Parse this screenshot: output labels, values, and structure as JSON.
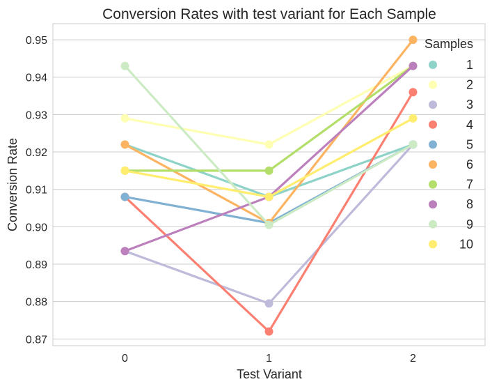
{
  "chart_data": {
    "type": "line",
    "title": "Conversion Rates with test variant for Each Sample",
    "xlabel": "Test Variant",
    "ylabel": "Conversion Rate",
    "x": [
      0,
      1,
      2
    ],
    "x_tick_labels": [
      "0",
      "1",
      "2"
    ],
    "xlim": [
      -0.5,
      2.5
    ],
    "ylim": [
      0.8682,
      0.9543
    ],
    "y_ticks": [
      0.87,
      0.88,
      0.89,
      0.9,
      0.91,
      0.92,
      0.93,
      0.94,
      0.95
    ],
    "y_tick_labels": [
      "0.87",
      "0.88",
      "0.89",
      "0.90",
      "0.91",
      "0.92",
      "0.93",
      "0.94",
      "0.95"
    ],
    "grid": "horizontal",
    "legend": {
      "title": "Samples",
      "placement": "top-right"
    },
    "series": [
      {
        "name": "1",
        "color": "#8dd3c7",
        "values": [
          0.922,
          0.908,
          0.922
        ]
      },
      {
        "name": "2",
        "color": "#ffffb3",
        "values": [
          0.929,
          0.922,
          0.943
        ]
      },
      {
        "name": "3",
        "color": "#bebada",
        "values": [
          0.8935,
          0.8795,
          0.922
        ]
      },
      {
        "name": "4",
        "color": "#fb8072",
        "values": [
          0.908,
          0.872,
          0.936
        ]
      },
      {
        "name": "5",
        "color": "#80b1d3",
        "values": [
          0.908,
          0.901,
          0.922
        ]
      },
      {
        "name": "6",
        "color": "#fdb462",
        "values": [
          0.922,
          0.901,
          0.95
        ]
      },
      {
        "name": "7",
        "color": "#b3de69",
        "values": [
          0.915,
          0.915,
          0.943
        ]
      },
      {
        "name": "8",
        "color": "#bc80bd",
        "values": [
          0.8935,
          0.908,
          0.943
        ]
      },
      {
        "name": "9",
        "color": "#ccebc5",
        "values": [
          0.943,
          0.9005,
          0.922
        ]
      },
      {
        "name": "10",
        "color": "#ffed6f",
        "values": [
          0.915,
          0.908,
          0.929
        ]
      }
    ]
  }
}
